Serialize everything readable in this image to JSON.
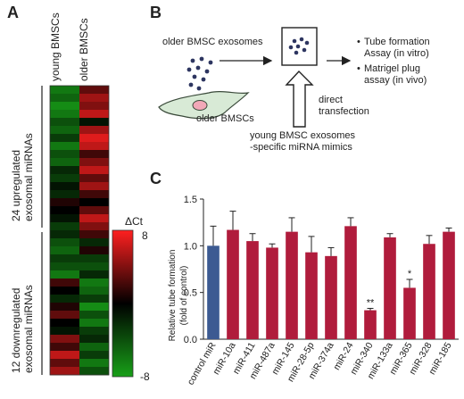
{
  "panel_a": {
    "letter": "A",
    "col_labels": [
      "young BMSCs",
      "older BMSCs"
    ],
    "group_labels": {
      "up": [
        "24 upregulated",
        "exosomal miRNAs"
      ],
      "down": [
        "12 downregulated",
        "exosomal miRNAs"
      ]
    },
    "legend": {
      "title": "ΔCt",
      "max": "8",
      "min": "-8"
    },
    "colors": {
      "high": "#ff2020",
      "mid": "#000000",
      "low": "#18a018"
    },
    "heatmap_values": {
      "young": [
        -6,
        -5,
        -7,
        -6,
        -4,
        -5,
        -3,
        -6,
        -4,
        -5,
        -2,
        -3,
        -1,
        -2,
        1,
        0,
        -1,
        -3,
        -2,
        -4,
        -5,
        -3,
        -4,
        -6,
        2,
        0,
        -2,
        1,
        3,
        0,
        -1,
        4,
        2,
        6,
        3,
        5
      ],
      "older": [
        3,
        5,
        4,
        6,
        -1,
        5,
        7,
        6,
        2,
        4,
        6,
        3,
        5,
        2,
        0,
        3,
        6,
        4,
        2,
        -2,
        1,
        -3,
        -4,
        -2,
        -6,
        -5,
        -3,
        -7,
        -4,
        -6,
        -3,
        -2,
        -5,
        -3,
        -6,
        -4
      ]
    }
  },
  "panel_b": {
    "letter": "B",
    "older_exosomes_label": "older BMSC exosomes",
    "older_cells_label": "older BMSCs",
    "direct_label": [
      "direct",
      "transfection"
    ],
    "mimics_label": [
      "young BMSC exosomes",
      "-specific miRNA mimics"
    ],
    "assays": [
      [
        "Tube formation",
        "Assay (in vitro)"
      ],
      [
        "Matrigel plug",
        "assay (in vivo)"
      ]
    ],
    "bullet": "•",
    "colors": {
      "exosome": "#2d3560",
      "cell_fill": "#d8ead6",
      "nucleus": "#f2a8b8"
    }
  },
  "panel_c": {
    "letter": "C",
    "chart_data": {
      "type": "bar",
      "categories": [
        "control miR",
        "miR-10a",
        "miR-411",
        "miR-487a",
        "miR-145",
        "miR-28-5p",
        "miR-374a",
        "miR-24",
        "miR-340",
        "miR-133a",
        "miR-365",
        "miR-328",
        "miR-185"
      ],
      "values": [
        1.0,
        1.17,
        1.05,
        0.98,
        1.15,
        0.93,
        0.89,
        1.21,
        0.31,
        1.09,
        0.55,
        1.02,
        1.15
      ],
      "errors": [
        0.21,
        0.2,
        0.08,
        0.04,
        0.15,
        0.17,
        0.09,
        0.09,
        0.02,
        0.04,
        0.09,
        0.09,
        0.04
      ],
      "significance": [
        "",
        "",
        "",
        "",
        "",
        "",
        "",
        "",
        "**",
        "",
        "*",
        "",
        ""
      ],
      "ylabel": [
        "Relative tube formation",
        "(fold of control)"
      ],
      "ylim": [
        0,
        1.5
      ],
      "yticks": [
        "0.0",
        "0.5",
        "1.0",
        "1.5"
      ],
      "colors": {
        "control": "#3c5a92",
        "treatment": "#b01c3c"
      }
    }
  }
}
